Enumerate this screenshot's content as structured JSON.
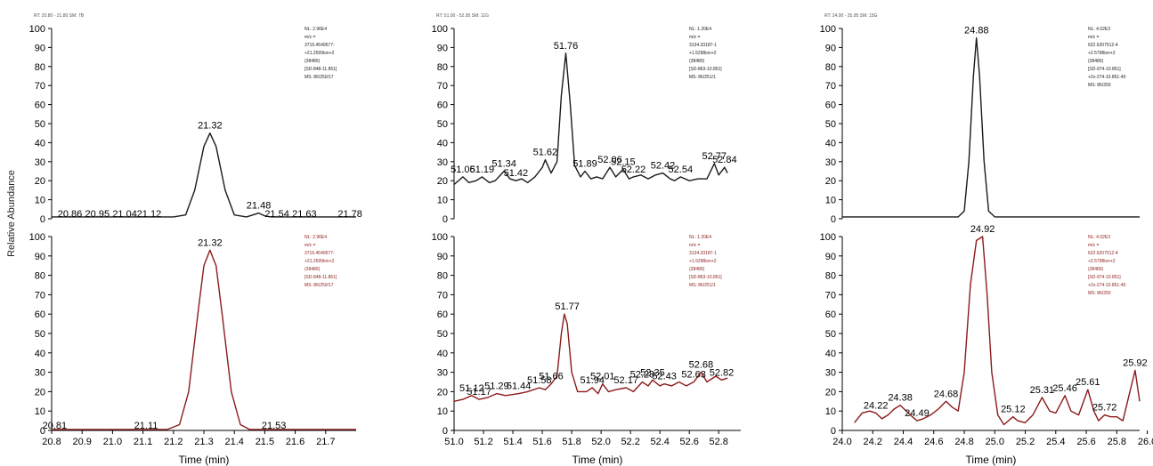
{
  "figure": {
    "ylabel": "Relative Abundance",
    "colors": {
      "top_trace": "#1a1a1a",
      "bottom_trace": "#8b1a1a",
      "leader": "#2a9a2a",
      "axis": "#000000"
    }
  },
  "chart_data": [
    {
      "type": "line",
      "position": "top-left",
      "header": "RT: 20.80 - 21.80   SM: 7B",
      "ylim": [
        0,
        100
      ],
      "yticks": [
        0,
        10,
        20,
        30,
        40,
        50,
        60,
        70,
        80,
        90,
        100
      ],
      "xlim": [
        20.8,
        21.8
      ],
      "show_xaxis": false,
      "xlabel": "",
      "color": "#1a1a1a",
      "points": [
        [
          20.8,
          1
        ],
        [
          21.2,
          1
        ],
        [
          21.24,
          2
        ],
        [
          21.27,
          15
        ],
        [
          21.3,
          38
        ],
        [
          21.32,
          45
        ],
        [
          21.34,
          38
        ],
        [
          21.37,
          15
        ],
        [
          21.4,
          2
        ],
        [
          21.44,
          1
        ],
        [
          21.47,
          2.5
        ],
        [
          21.48,
          3
        ],
        [
          21.5,
          1.5
        ],
        [
          21.52,
          1
        ],
        [
          21.8,
          1
        ]
      ],
      "labels": [
        {
          "x": 21.32,
          "y": 45,
          "text": "21.32"
        },
        {
          "x": 21.48,
          "y": 3,
          "text": "21.48"
        },
        {
          "x": 20.86,
          "y": 0,
          "text": "20.86"
        },
        {
          "x": 20.95,
          "y": 0,
          "text": "20.95"
        },
        {
          "x": 21.04,
          "y": 0,
          "text": "21.04"
        },
        {
          "x": 21.12,
          "y": 0,
          "text": "21.12"
        },
        {
          "x": 21.54,
          "y": 0,
          "text": "21.54"
        },
        {
          "x": 21.63,
          "y": 0,
          "text": "21.63"
        },
        {
          "x": 21.78,
          "y": 0,
          "text": "21.78"
        }
      ],
      "annotation": [
        "NL: 2.96E4",
        "m/z =",
        "3716.4549577-",
        "+21.2599ion+2",
        "(38480)",
        "[SD-848-11.851]",
        "MS: 86/250/17"
      ]
    },
    {
      "type": "line",
      "position": "bottom-left",
      "ylim": [
        0,
        100
      ],
      "yticks": [
        0,
        10,
        20,
        30,
        40,
        50,
        60,
        70,
        80,
        90,
        100
      ],
      "xlim": [
        20.8,
        21.8
      ],
      "xticks": [
        "20.8",
        "20.9",
        "21.0",
        "21.1",
        "21.2",
        "21.3",
        "21.4",
        "21.5",
        "21.6",
        "21.7"
      ],
      "show_xaxis": true,
      "xlabel": "Time (min)",
      "color": "#8b1a1a",
      "points": [
        [
          20.8,
          0.5
        ],
        [
          21.18,
          0.5
        ],
        [
          21.22,
          3
        ],
        [
          21.25,
          20
        ],
        [
          21.28,
          60
        ],
        [
          21.3,
          85
        ],
        [
          21.32,
          93
        ],
        [
          21.34,
          85
        ],
        [
          21.36,
          60
        ],
        [
          21.39,
          20
        ],
        [
          21.42,
          3
        ],
        [
          21.45,
          0.5
        ],
        [
          21.8,
          0.5
        ]
      ],
      "labels": [
        {
          "x": 21.32,
          "y": 93,
          "text": "21.32"
        },
        {
          "x": 20.81,
          "y": 0,
          "text": "20.81"
        },
        {
          "x": 21.11,
          "y": 0,
          "text": "21.11"
        },
        {
          "x": 21.53,
          "y": 0,
          "text": "21.53"
        }
      ],
      "annotation": [
        "NL: 2.96E4",
        "m/z =",
        "3716.4549577-",
        "+21.2599ion+2",
        "(38480)",
        "[SD-848-11.851]",
        "MS: 86/250/17"
      ]
    },
    {
      "type": "line",
      "position": "top-middle",
      "header": "RT: 51.00 - 52.95   SM: 11G",
      "ylim": [
        0,
        100
      ],
      "yticks": [
        0,
        10,
        20,
        30,
        40,
        50,
        60,
        70,
        80,
        90,
        100
      ],
      "xlim": [
        51.0,
        52.95
      ],
      "show_xaxis": false,
      "xlabel": "",
      "color": "#1a1a1a",
      "points": [
        [
          51.0,
          18
        ],
        [
          51.06,
          22
        ],
        [
          51.1,
          19
        ],
        [
          51.15,
          20
        ],
        [
          51.19,
          22
        ],
        [
          51.24,
          19
        ],
        [
          51.28,
          20
        ],
        [
          51.34,
          25
        ],
        [
          51.38,
          21
        ],
        [
          51.42,
          20
        ],
        [
          51.46,
          21
        ],
        [
          51.5,
          19
        ],
        [
          51.55,
          22
        ],
        [
          51.6,
          27
        ],
        [
          51.62,
          31
        ],
        [
          51.66,
          24
        ],
        [
          51.7,
          30
        ],
        [
          51.73,
          65
        ],
        [
          51.76,
          87
        ],
        [
          51.79,
          60
        ],
        [
          51.82,
          28
        ],
        [
          51.86,
          22
        ],
        [
          51.89,
          25
        ],
        [
          51.93,
          21
        ],
        [
          51.97,
          22
        ],
        [
          52.01,
          21
        ],
        [
          52.06,
          27
        ],
        [
          52.1,
          22
        ],
        [
          52.15,
          26
        ],
        [
          52.19,
          21
        ],
        [
          52.22,
          22
        ],
        [
          52.27,
          23
        ],
        [
          52.32,
          21
        ],
        [
          52.37,
          23
        ],
        [
          52.42,
          24
        ],
        [
          52.47,
          21
        ],
        [
          52.5,
          20
        ],
        [
          52.54,
          22
        ],
        [
          52.6,
          20
        ],
        [
          52.66,
          21
        ],
        [
          52.72,
          21
        ],
        [
          52.77,
          29
        ],
        [
          52.8,
          23
        ],
        [
          52.84,
          27
        ],
        [
          52.86,
          24
        ]
      ],
      "labels": [
        {
          "x": 51.06,
          "y": 22,
          "text": "51.06"
        },
        {
          "x": 51.19,
          "y": 22,
          "text": "51.19"
        },
        {
          "x": 51.34,
          "y": 25,
          "text": "51.34"
        },
        {
          "x": 51.42,
          "y": 20,
          "text": "51.42"
        },
        {
          "x": 51.62,
          "y": 31,
          "text": "51.62"
        },
        {
          "x": 51.76,
          "y": 87,
          "text": "51.76"
        },
        {
          "x": 51.89,
          "y": 25,
          "text": "51.89"
        },
        {
          "x": 52.06,
          "y": 27,
          "text": "52.06"
        },
        {
          "x": 52.15,
          "y": 26,
          "text": "52.15"
        },
        {
          "x": 52.22,
          "y": 22,
          "text": "52.22"
        },
        {
          "x": 52.42,
          "y": 24,
          "text": "52.42"
        },
        {
          "x": 52.54,
          "y": 22,
          "text": "52.54"
        },
        {
          "x": 52.77,
          "y": 29,
          "text": "52.77"
        },
        {
          "x": 52.84,
          "y": 27,
          "text": "52.84"
        }
      ],
      "annotation": [
        "NL: 1.20E4",
        "m/z =",
        "3134.33187-1",
        "+1.5298ion+2",
        "(38480)",
        "[SD-863-10.851]",
        "MS: 86/251/1"
      ]
    },
    {
      "type": "line",
      "position": "bottom-middle",
      "ylim": [
        0,
        100
      ],
      "yticks": [
        0,
        10,
        20,
        30,
        40,
        50,
        60,
        70,
        80,
        90,
        100
      ],
      "xlim": [
        51.0,
        52.95
      ],
      "xticks": [
        "51.0",
        "51.2",
        "51.4",
        "51.6",
        "51.8",
        "52.0",
        "52.2",
        "52.4",
        "52.6",
        "52.8"
      ],
      "show_xaxis": true,
      "xlabel": "Time (min)",
      "color": "#8b1a1a",
      "points": [
        [
          51.0,
          15
        ],
        [
          51.06,
          16
        ],
        [
          51.12,
          18
        ],
        [
          51.17,
          16
        ],
        [
          51.23,
          17
        ],
        [
          51.29,
          19
        ],
        [
          51.35,
          18
        ],
        [
          51.44,
          19
        ],
        [
          51.5,
          20
        ],
        [
          51.58,
          22
        ],
        [
          51.62,
          21
        ],
        [
          51.66,
          24
        ],
        [
          51.7,
          28
        ],
        [
          51.73,
          50
        ],
        [
          51.75,
          60
        ],
        [
          51.77,
          55
        ],
        [
          51.8,
          30
        ],
        [
          51.84,
          20
        ],
        [
          51.9,
          20
        ],
        [
          51.94,
          22
        ],
        [
          51.98,
          19
        ],
        [
          52.01,
          24
        ],
        [
          52.05,
          20
        ],
        [
          52.1,
          21
        ],
        [
          52.17,
          22
        ],
        [
          52.22,
          20
        ],
        [
          52.28,
          25
        ],
        [
          52.32,
          23
        ],
        [
          52.35,
          26
        ],
        [
          52.4,
          23
        ],
        [
          52.43,
          24
        ],
        [
          52.48,
          23
        ],
        [
          52.53,
          25
        ],
        [
          52.58,
          23
        ],
        [
          52.63,
          25
        ],
        [
          52.68,
          30
        ],
        [
          52.72,
          25
        ],
        [
          52.78,
          28
        ],
        [
          52.82,
          26
        ],
        [
          52.86,
          27
        ]
      ],
      "labels": [
        {
          "x": 51.12,
          "y": 18,
          "text": "51.12"
        },
        {
          "x": 51.17,
          "y": 16,
          "text": "51.17"
        },
        {
          "x": 51.29,
          "y": 19,
          "text": "51.29"
        },
        {
          "x": 51.44,
          "y": 19,
          "text": "51.44"
        },
        {
          "x": 51.58,
          "y": 22,
          "text": "51.58"
        },
        {
          "x": 51.66,
          "y": 24,
          "text": "51.66"
        },
        {
          "x": 51.77,
          "y": 60,
          "text": "51.77"
        },
        {
          "x": 51.94,
          "y": 22,
          "text": "51.94"
        },
        {
          "x": 52.01,
          "y": 24,
          "text": "52.01"
        },
        {
          "x": 52.17,
          "y": 22,
          "text": "52.17"
        },
        {
          "x": 52.28,
          "y": 25,
          "text": "52.28"
        },
        {
          "x": 52.35,
          "y": 26,
          "text": "52.35"
        },
        {
          "x": 52.43,
          "y": 24,
          "text": "52.43"
        },
        {
          "x": 52.63,
          "y": 25,
          "text": "52.63"
        },
        {
          "x": 52.68,
          "y": 30,
          "text": "52.68"
        },
        {
          "x": 52.82,
          "y": 26,
          "text": "52.82"
        }
      ],
      "annotation": [
        "NL: 1.20E4",
        "m/z =",
        "3134.33187-1",
        "+1.5298ion+2",
        "(38480)",
        "[SD-863-10.851]",
        "MS: 86/251/1"
      ]
    },
    {
      "type": "line",
      "position": "top-right",
      "header": "RT: 24.00 - 25.95   SM: 15G",
      "ylim": [
        0,
        100
      ],
      "yticks": [
        0,
        10,
        20,
        30,
        40,
        50,
        60,
        70,
        80,
        90,
        100
      ],
      "xlim": [
        24.0,
        25.95
      ],
      "show_xaxis": false,
      "xlabel": "",
      "color": "#1a1a1a",
      "points": [
        [
          24.0,
          1
        ],
        [
          24.76,
          1
        ],
        [
          24.8,
          4
        ],
        [
          24.83,
          30
        ],
        [
          24.86,
          75
        ],
        [
          24.88,
          95
        ],
        [
          24.9,
          75
        ],
        [
          24.93,
          30
        ],
        [
          24.96,
          4
        ],
        [
          25.0,
          1
        ],
        [
          25.95,
          1
        ]
      ],
      "labels": [
        {
          "x": 24.88,
          "y": 95,
          "text": "24.88"
        }
      ],
      "annotation": [
        "NL: 4.02E3",
        "m/z =",
        "622.6207512-4",
        "+2.5798ion+2",
        "(38480)",
        "[SD-974-10.851]",
        "+2x-274-10.851-40",
        "MS: 86/250"
      ]
    },
    {
      "type": "line",
      "position": "bottom-right",
      "ylim": [
        0,
        100
      ],
      "yticks": [
        0,
        10,
        20,
        30,
        40,
        50,
        60,
        70,
        80,
        90,
        100
      ],
      "xlim": [
        24.0,
        25.95
      ],
      "xticks": [
        "24.0",
        "24.2",
        "24.4",
        "24.6",
        "24.8",
        "25.0",
        "25.2",
        "25.4",
        "25.6",
        "25.8",
        "26.0"
      ],
      "show_xaxis": true,
      "xlabel": "Time (min)",
      "color": "#8b1a1a",
      "points": [
        [
          24.08,
          4
        ],
        [
          24.13,
          9
        ],
        [
          24.18,
          10
        ],
        [
          24.22,
          9
        ],
        [
          24.26,
          6
        ],
        [
          24.3,
          8
        ],
        [
          24.34,
          11
        ],
        [
          24.38,
          13
        ],
        [
          24.42,
          10
        ],
        [
          24.46,
          7
        ],
        [
          24.49,
          5
        ],
        [
          24.53,
          6
        ],
        [
          24.58,
          8
        ],
        [
          24.63,
          11
        ],
        [
          24.68,
          15
        ],
        [
          24.72,
          12
        ],
        [
          24.76,
          10
        ],
        [
          24.8,
          30
        ],
        [
          24.84,
          75
        ],
        [
          24.88,
          98
        ],
        [
          24.92,
          100
        ],
        [
          24.95,
          70
        ],
        [
          24.98,
          30
        ],
        [
          25.02,
          8
        ],
        [
          25.06,
          3
        ],
        [
          25.12,
          7
        ],
        [
          25.15,
          5
        ],
        [
          25.2,
          4
        ],
        [
          25.25,
          8
        ],
        [
          25.31,
          17
        ],
        [
          25.36,
          10
        ],
        [
          25.4,
          9
        ],
        [
          25.46,
          18
        ],
        [
          25.5,
          10
        ],
        [
          25.55,
          8
        ],
        [
          25.61,
          21
        ],
        [
          25.65,
          10
        ],
        [
          25.68,
          5
        ],
        [
          25.72,
          8
        ],
        [
          25.76,
          7
        ],
        [
          25.8,
          7
        ],
        [
          25.84,
          5
        ],
        [
          25.88,
          18
        ],
        [
          25.92,
          31
        ],
        [
          25.95,
          15
        ]
      ],
      "labels": [
        {
          "x": 24.22,
          "y": 9,
          "text": "24.22"
        },
        {
          "x": 24.38,
          "y": 13,
          "text": "24.38"
        },
        {
          "x": 24.49,
          "y": 5,
          "text": "24.49"
        },
        {
          "x": 24.68,
          "y": 15,
          "text": "24.68"
        },
        {
          "x": 24.92,
          "y": 100,
          "text": "24.92"
        },
        {
          "x": 25.12,
          "y": 7,
          "text": "25.12"
        },
        {
          "x": 25.31,
          "y": 17,
          "text": "25.31"
        },
        {
          "x": 25.46,
          "y": 18,
          "text": "25.46"
        },
        {
          "x": 25.61,
          "y": 21,
          "text": "25.61"
        },
        {
          "x": 25.72,
          "y": 8,
          "text": "25.72"
        },
        {
          "x": 25.92,
          "y": 31,
          "text": "25.92"
        }
      ],
      "annotation": [
        "NL: 4.02E3",
        "m/z =",
        "622.6207512-4",
        "+2.5798ion+2",
        "(38480)",
        "[SD-974-10.851]",
        "+2x-274-10.851-40",
        "MS: 86/250"
      ]
    }
  ]
}
